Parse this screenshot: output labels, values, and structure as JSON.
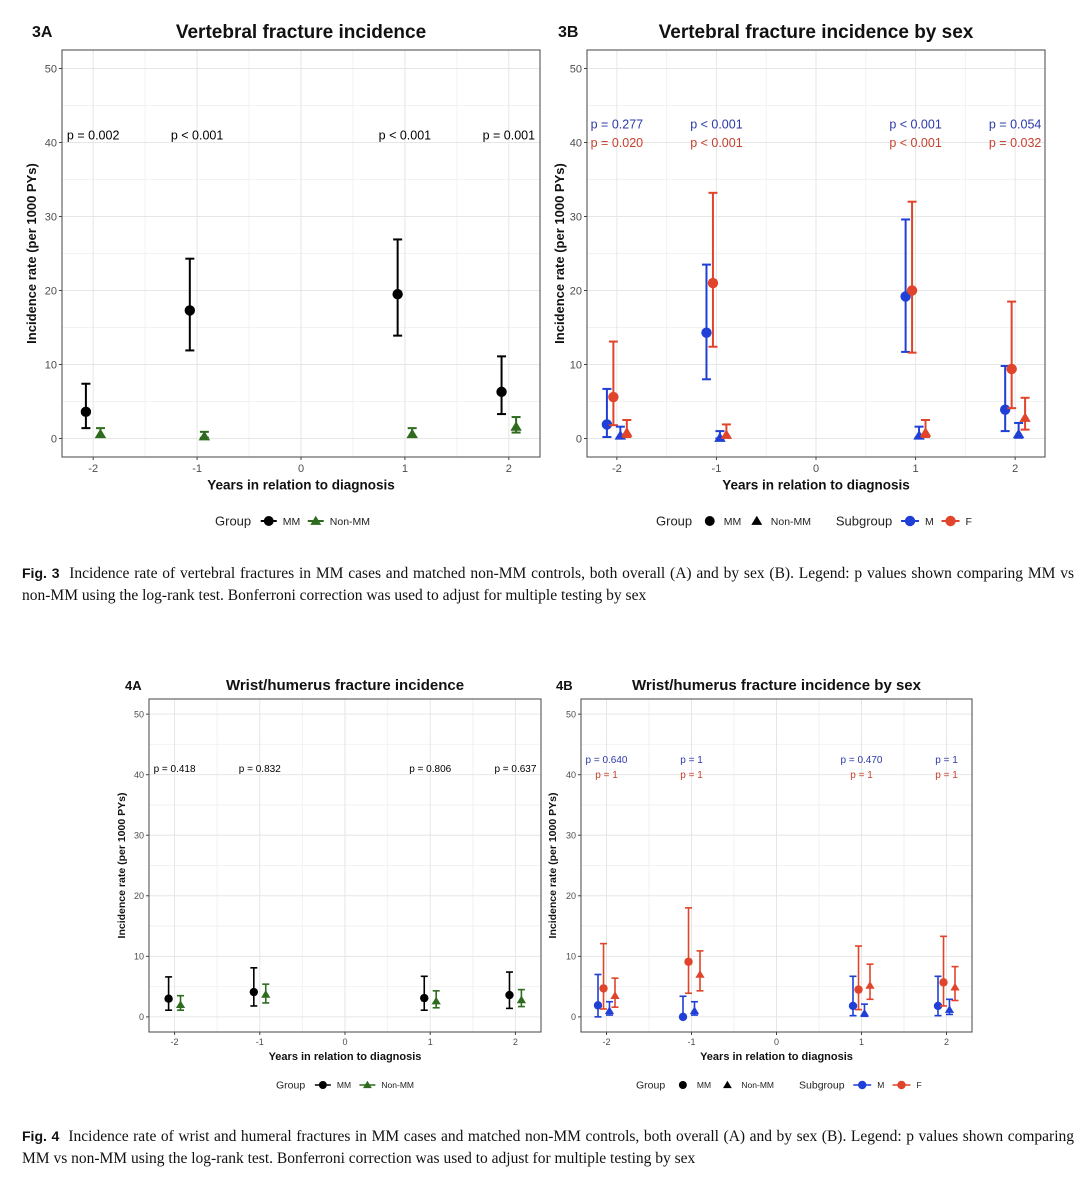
{
  "figures": {
    "fig3": {
      "label": "Fig. 3",
      "caption": "Incidence rate of vertebral fractures in MM cases and matched non-MM controls, both overall (A) and by sex (B). Legend: p values shown comparing MM vs non-MM using the log-rank test. Bonferroni correction was used to adjust for multiple testing by sex"
    },
    "fig4": {
      "label": "Fig. 4",
      "caption": "Incidence rate of wrist and humeral fractures in MM cases and matched non-MM controls, both overall (A) and by sex (B). Legend: p values shown comparing MM vs non-MM using the log-rank test. Bonferroni correction was used to adjust for multiple testing by sex"
    }
  },
  "colors": {
    "MM": "#000000",
    "Non-MM": "#2e6b1f",
    "M": "#1f3fd6",
    "F": "#e0442b",
    "M_text": "#2b3aa8",
    "F_text": "#c8402e",
    "grid": "#ebebeb"
  },
  "chart_data": [
    {
      "id": "3A",
      "panel_label": "3A",
      "type": "scatter",
      "title": "Vertebral fracture incidence",
      "xlabel": "Years in relation to diagnosis",
      "ylabel": "Incidence rate (per 1000 PYs)",
      "xlim": [
        -2.3,
        2.3
      ],
      "ylim": [
        -2.5,
        52.5
      ],
      "xticks": [
        -2,
        -1,
        0,
        1,
        2
      ],
      "yticks": [
        0,
        10,
        20,
        30,
        40,
        50
      ],
      "grid": true,
      "legend": {
        "position": "bottom",
        "title": "Group",
        "entries": [
          {
            "label": "MM",
            "shape": "circle",
            "color": "#000000"
          },
          {
            "label": "Non-MM",
            "shape": "triangle",
            "color": "#2e6b1f"
          }
        ]
      },
      "pvalue_rows": [
        {
          "color": "#000000",
          "y": 41,
          "labels": [
            {
              "x": -2,
              "text": "p = 0.002"
            },
            {
              "x": -1,
              "text": "p < 0.001"
            },
            {
              "x": 1,
              "text": "p < 0.001"
            },
            {
              "x": 2,
              "text": "p = 0.001"
            }
          ]
        }
      ],
      "series": [
        {
          "name": "MM",
          "shape": "circle",
          "color": "#000000",
          "offset": -0.07,
          "points": [
            {
              "x": -2,
              "y": 3.6,
              "lo": 1.4,
              "hi": 7.4
            },
            {
              "x": -1,
              "y": 17.3,
              "lo": 11.9,
              "hi": 24.3
            },
            {
              "x": 1,
              "y": 19.5,
              "lo": 13.9,
              "hi": 26.9
            },
            {
              "x": 2,
              "y": 6.3,
              "lo": 3.3,
              "hi": 11.1
            }
          ]
        },
        {
          "name": "Non-MM",
          "shape": "triangle",
          "color": "#2e6b1f",
          "offset": 0.07,
          "points": [
            {
              "x": -2,
              "y": 0.6,
              "lo": 0.2,
              "hi": 1.4
            },
            {
              "x": -1,
              "y": 0.3,
              "lo": 0.1,
              "hi": 0.9
            },
            {
              "x": 1,
              "y": 0.6,
              "lo": 0.2,
              "hi": 1.4
            },
            {
              "x": 2,
              "y": 1.6,
              "lo": 0.8,
              "hi": 2.9
            }
          ]
        }
      ]
    },
    {
      "id": "3B",
      "panel_label": "3B",
      "type": "scatter",
      "title": "Vertebral fracture incidence by sex",
      "xlabel": "Years in relation to diagnosis",
      "ylabel": "Incidence rate (per 1000 PYs)",
      "xlim": [
        -2.3,
        2.3
      ],
      "ylim": [
        -2.5,
        52.5
      ],
      "xticks": [
        -2,
        -1,
        0,
        1,
        2
      ],
      "yticks": [
        0,
        10,
        20,
        30,
        40,
        50
      ],
      "grid": true,
      "legend": {
        "position": "bottom",
        "title": "Group",
        "entries": [
          {
            "label": "MM",
            "shape": "circle",
            "color": "#000000"
          },
          {
            "label": "Non-MM",
            "shape": "triangle",
            "color": "#000000"
          }
        ],
        "title2": "Subgroup",
        "entries2": [
          {
            "label": "M",
            "shape": "circle-line",
            "color": "#1f3fd6"
          },
          {
            "label": "F",
            "shape": "circle-line",
            "color": "#e0442b"
          }
        ]
      },
      "pvalue_rows": [
        {
          "color": "#2b3aa8",
          "y": 42.5,
          "labels": [
            {
              "x": -2,
              "text": "p = 0.277"
            },
            {
              "x": -1,
              "text": "p < 0.001"
            },
            {
              "x": 1,
              "text": "p < 0.001"
            },
            {
              "x": 2,
              "text": "p = 0.054"
            }
          ]
        },
        {
          "color": "#c8402e",
          "y": 40,
          "labels": [
            {
              "x": -2,
              "text": "p = 0.020"
            },
            {
              "x": -1,
              "text": "p < 0.001"
            },
            {
              "x": 1,
              "text": "p < 0.001"
            },
            {
              "x": 2,
              "text": "p = 0.032"
            }
          ]
        }
      ],
      "series": [
        {
          "name": "MM-M",
          "shape": "circle",
          "color": "#1f3fd6",
          "offset": -0.1,
          "points": [
            {
              "x": -2,
              "y": 1.9,
              "lo": 0.2,
              "hi": 6.7
            },
            {
              "x": -1,
              "y": 14.3,
              "lo": 8.0,
              "hi": 23.5
            },
            {
              "x": 1,
              "y": 19.2,
              "lo": 11.7,
              "hi": 29.6
            },
            {
              "x": 2,
              "y": 3.9,
              "lo": 1.0,
              "hi": 9.8
            }
          ]
        },
        {
          "name": "MM-F",
          "shape": "circle",
          "color": "#e0442b",
          "offset": -0.035,
          "points": [
            {
              "x": -2,
              "y": 5.6,
              "lo": 1.8,
              "hi": 13.1
            },
            {
              "x": -1,
              "y": 21.0,
              "lo": 12.4,
              "hi": 33.2
            },
            {
              "x": 1,
              "y": 20.0,
              "lo": 11.6,
              "hi": 32.0
            },
            {
              "x": 2,
              "y": 9.4,
              "lo": 4.1,
              "hi": 18.5
            }
          ]
        },
        {
          "name": "Non-MM-M",
          "shape": "triangle",
          "color": "#1f3fd6",
          "offset": 0.035,
          "points": [
            {
              "x": -2,
              "y": 0.4,
              "lo": 0.1,
              "hi": 1.6
            },
            {
              "x": -1,
              "y": 0.1,
              "lo": 0.0,
              "hi": 1.0
            },
            {
              "x": 1,
              "y": 0.4,
              "lo": 0.1,
              "hi": 1.6
            },
            {
              "x": 2,
              "y": 0.6,
              "lo": 0.1,
              "hi": 2.1
            }
          ]
        },
        {
          "name": "Non-MM-F",
          "shape": "triangle",
          "color": "#e0442b",
          "offset": 0.1,
          "points": [
            {
              "x": -2,
              "y": 0.8,
              "lo": 0.2,
              "hi": 2.5
            },
            {
              "x": -1,
              "y": 0.5,
              "lo": 0.1,
              "hi": 1.9
            },
            {
              "x": 1,
              "y": 0.8,
              "lo": 0.2,
              "hi": 2.5
            },
            {
              "x": 2,
              "y": 2.8,
              "lo": 1.2,
              "hi": 5.5
            }
          ]
        }
      ]
    },
    {
      "id": "4A",
      "panel_label": "4A",
      "type": "scatter",
      "title": "Wrist/humerus fracture incidence",
      "xlabel": "Years in relation to diagnosis",
      "ylabel": "Incidence rate (per 1000 PYs)",
      "xlim": [
        -2.3,
        2.3
      ],
      "ylim": [
        -2.5,
        52.5
      ],
      "xticks": [
        -2,
        -1,
        0,
        1,
        2
      ],
      "yticks": [
        0,
        10,
        20,
        30,
        40,
        50
      ],
      "grid": true,
      "legend": {
        "position": "bottom",
        "title": "Group",
        "entries": [
          {
            "label": "MM",
            "shape": "circle",
            "color": "#000000"
          },
          {
            "label": "Non-MM",
            "shape": "triangle",
            "color": "#2e6b1f"
          }
        ]
      },
      "pvalue_rows": [
        {
          "color": "#000000",
          "y": 41,
          "labels": [
            {
              "x": -2,
              "text": "p = 0.418"
            },
            {
              "x": -1,
              "text": "p = 0.832"
            },
            {
              "x": 1,
              "text": "p = 0.806"
            },
            {
              "x": 2,
              "text": "p = 0.637"
            }
          ]
        }
      ],
      "series": [
        {
          "name": "MM",
          "shape": "circle",
          "color": "#000000",
          "offset": -0.07,
          "points": [
            {
              "x": -2,
              "y": 3.0,
              "lo": 1.1,
              "hi": 6.6
            },
            {
              "x": -1,
              "y": 4.1,
              "lo": 1.8,
              "hi": 8.1
            },
            {
              "x": 1,
              "y": 3.1,
              "lo": 1.1,
              "hi": 6.7
            },
            {
              "x": 2,
              "y": 3.6,
              "lo": 1.4,
              "hi": 7.4
            }
          ]
        },
        {
          "name": "Non-MM",
          "shape": "triangle",
          "color": "#2e6b1f",
          "offset": 0.07,
          "points": [
            {
              "x": -2,
              "y": 2.0,
              "lo": 1.1,
              "hi": 3.5
            },
            {
              "x": -1,
              "y": 3.7,
              "lo": 2.3,
              "hi": 5.4
            },
            {
              "x": 1,
              "y": 2.6,
              "lo": 1.5,
              "hi": 4.3
            },
            {
              "x": 2,
              "y": 2.8,
              "lo": 1.7,
              "hi": 4.5
            }
          ]
        }
      ]
    },
    {
      "id": "4B",
      "panel_label": "4B",
      "type": "scatter",
      "title": "Wrist/humerus fracture incidence by sex",
      "xlabel": "Years in relation to diagnosis",
      "ylabel": "Incidence rate (per 1000 PYs)",
      "xlim": [
        -2.3,
        2.3
      ],
      "ylim": [
        -2.5,
        52.5
      ],
      "xticks": [
        -2,
        -1,
        0,
        1,
        2
      ],
      "yticks": [
        0,
        10,
        20,
        30,
        40,
        50
      ],
      "grid": true,
      "legend": {
        "position": "bottom",
        "title": "Group",
        "entries": [
          {
            "label": "MM",
            "shape": "circle",
            "color": "#000000"
          },
          {
            "label": "Non-MM",
            "shape": "triangle",
            "color": "#000000"
          }
        ],
        "title2": "Subgroup",
        "entries2": [
          {
            "label": "M",
            "shape": "circle-line",
            "color": "#1f3fd6"
          },
          {
            "label": "F",
            "shape": "circle-line",
            "color": "#e0442b"
          }
        ]
      },
      "pvalue_rows": [
        {
          "color": "#2b3aa8",
          "y": 42.5,
          "labels": [
            {
              "x": -2,
              "text": "p = 0.640"
            },
            {
              "x": -1,
              "text": "p = 1"
            },
            {
              "x": 1,
              "text": "p = 0.470"
            },
            {
              "x": 2,
              "text": "p = 1"
            }
          ]
        },
        {
          "color": "#c8402e",
          "y": 40,
          "labels": [
            {
              "x": -2,
              "text": "p = 1"
            },
            {
              "x": -1,
              "text": "p = 1"
            },
            {
              "x": 1,
              "text": "p = 1"
            },
            {
              "x": 2,
              "text": "p = 1"
            }
          ]
        }
      ],
      "series": [
        {
          "name": "MM-M",
          "shape": "circle",
          "color": "#1f3fd6",
          "offset": -0.1,
          "points": [
            {
              "x": -2,
              "y": 1.9,
              "lo": 0.0,
              "hi": 7.0
            },
            {
              "x": -1,
              "y": 0.0,
              "lo": 0.0,
              "hi": 3.4
            },
            {
              "x": 1,
              "y": 1.8,
              "lo": 0.2,
              "hi": 6.7
            },
            {
              "x": 2,
              "y": 1.8,
              "lo": 0.2,
              "hi": 6.7
            }
          ]
        },
        {
          "name": "MM-F",
          "shape": "circle",
          "color": "#e0442b",
          "offset": -0.035,
          "points": [
            {
              "x": -2,
              "y": 4.7,
              "lo": 1.3,
              "hi": 12.1
            },
            {
              "x": -1,
              "y": 9.1,
              "lo": 3.9,
              "hi": 18.0
            },
            {
              "x": 1,
              "y": 4.5,
              "lo": 1.2,
              "hi": 11.7
            },
            {
              "x": 2,
              "y": 5.7,
              "lo": 1.8,
              "hi": 13.3
            }
          ]
        },
        {
          "name": "Non-MM-M",
          "shape": "triangle",
          "color": "#1f3fd6",
          "offset": 0.035,
          "points": [
            {
              "x": -2,
              "y": 1.0,
              "lo": 0.3,
              "hi": 2.5
            },
            {
              "x": -1,
              "y": 1.0,
              "lo": 0.3,
              "hi": 2.5
            },
            {
              "x": 1,
              "y": 0.6,
              "lo": 0.1,
              "hi": 2.1
            },
            {
              "x": 2,
              "y": 1.2,
              "lo": 0.4,
              "hi": 2.9
            }
          ]
        },
        {
          "name": "Non-MM-F",
          "shape": "triangle",
          "color": "#e0442b",
          "offset": 0.1,
          "points": [
            {
              "x": -2,
              "y": 3.5,
              "lo": 1.6,
              "hi": 6.4
            },
            {
              "x": -1,
              "y": 7.0,
              "lo": 4.3,
              "hi": 10.9
            },
            {
              "x": 1,
              "y": 5.2,
              "lo": 2.9,
              "hi": 8.7
            },
            {
              "x": 2,
              "y": 4.9,
              "lo": 2.7,
              "hi": 8.3
            }
          ]
        }
      ]
    }
  ]
}
